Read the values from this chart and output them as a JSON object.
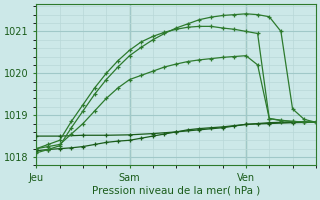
{
  "xlabel": "Pression niveau de la mer( hPa )",
  "background_color": "#cce8e8",
  "grid_color_major": "#a0c8c8",
  "grid_color_minor": "#b8d8d8",
  "line_colors": [
    "#1a5c1a",
    "#1a5c1a",
    "#2d7a2d",
    "#2d7a2d",
    "#2d7a2d"
  ],
  "xlim": [
    0,
    48
  ],
  "ylim": [
    1017.85,
    1021.65
  ],
  "yticks": [
    1018,
    1019,
    1020,
    1021
  ],
  "xtick_positions": [
    0,
    16,
    36
  ],
  "xtick_labels": [
    "Jeu",
    "Sam",
    "Ven"
  ],
  "series": [
    {
      "x": [
        0,
        2,
        4,
        6,
        8,
        10,
        12,
        14,
        16,
        18,
        20,
        22,
        24,
        26,
        28,
        30,
        32,
        34,
        36,
        38,
        40,
        42,
        44,
        46,
        48
      ],
      "y": [
        1018.15,
        1018.18,
        1018.2,
        1018.22,
        1018.25,
        1018.3,
        1018.35,
        1018.38,
        1018.4,
        1018.45,
        1018.5,
        1018.55,
        1018.6,
        1018.65,
        1018.68,
        1018.7,
        1018.72,
        1018.75,
        1018.78,
        1018.8,
        1018.82,
        1018.83,
        1018.83,
        1018.83,
        1018.83
      ]
    },
    {
      "x": [
        0,
        4,
        8,
        12,
        16,
        20,
        24,
        28,
        32,
        36,
        40,
        44,
        48
      ],
      "y": [
        1018.5,
        1018.5,
        1018.52,
        1018.52,
        1018.53,
        1018.56,
        1018.6,
        1018.65,
        1018.7,
        1018.78,
        1018.8,
        1018.82,
        1018.83
      ]
    },
    {
      "x": [
        0,
        2,
        4,
        6,
        8,
        10,
        12,
        14,
        16,
        18,
        20,
        22,
        24,
        26,
        28,
        30,
        32,
        34,
        36,
        38,
        40,
        42,
        44,
        46,
        48
      ],
      "y": [
        1018.2,
        1018.25,
        1018.3,
        1018.55,
        1018.8,
        1019.1,
        1019.4,
        1019.65,
        1019.85,
        1019.95,
        1020.05,
        1020.15,
        1020.22,
        1020.28,
        1020.32,
        1020.35,
        1020.38,
        1020.4,
        1020.42,
        1020.2,
        1018.92,
        1018.88,
        1018.85,
        1018.84,
        1018.83
      ]
    },
    {
      "x": [
        0,
        2,
        4,
        6,
        8,
        10,
        12,
        14,
        16,
        18,
        20,
        22,
        24,
        26,
        28,
        30,
        32,
        34,
        36,
        38,
        40,
        42,
        44,
        46,
        48
      ],
      "y": [
        1018.2,
        1018.3,
        1018.4,
        1018.85,
        1019.25,
        1019.65,
        1020.0,
        1020.3,
        1020.55,
        1020.75,
        1020.88,
        1020.98,
        1021.05,
        1021.1,
        1021.12,
        1021.12,
        1021.08,
        1021.05,
        1021.0,
        1020.95,
        1018.92,
        1018.87,
        1018.85,
        1018.84,
        1018.83
      ]
    },
    {
      "x": [
        0,
        2,
        4,
        6,
        8,
        10,
        12,
        14,
        16,
        18,
        20,
        22,
        24,
        26,
        28,
        30,
        32,
        34,
        36,
        38,
        40,
        42,
        44,
        46,
        48
      ],
      "y": [
        1018.1,
        1018.18,
        1018.27,
        1018.7,
        1019.1,
        1019.5,
        1019.85,
        1020.15,
        1020.42,
        1020.62,
        1020.8,
        1020.95,
        1021.08,
        1021.18,
        1021.28,
        1021.34,
        1021.38,
        1021.4,
        1021.42,
        1021.4,
        1021.35,
        1021.0,
        1019.15,
        1018.9,
        1018.83
      ]
    }
  ]
}
